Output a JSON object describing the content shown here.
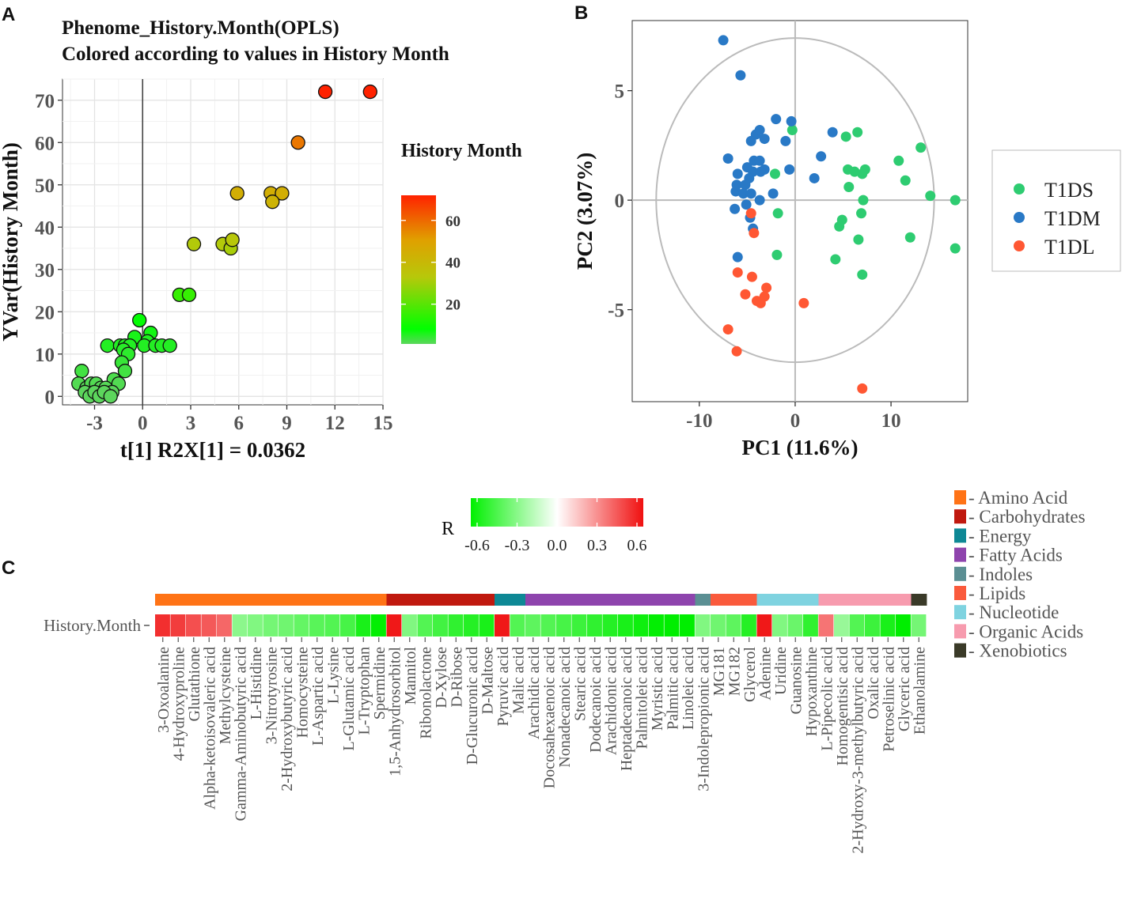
{
  "panels": {
    "a": "A",
    "b": "B",
    "c": "C"
  },
  "colors": {
    "t1ds": "#2ECC71",
    "t1dm": "#2979C6",
    "t1dl": "#FF5733",
    "grid": "#E6E6E6",
    "axis_line": "#444444",
    "circle": "#BBBBBB"
  },
  "chart_data": [
    {
      "id": "opls",
      "type": "scatter",
      "title": [
        "Phenome_History.Month(OPLS)",
        "Colored according to values in History Month"
      ],
      "xlabel": "t[1] R2X[1] = 0.0362",
      "ylabel": "YVar(History Month)",
      "xlim": [
        -5,
        15
      ],
      "ylim": [
        -2,
        75
      ],
      "xticks": [
        -3,
        0,
        3,
        6,
        9,
        12,
        15
      ],
      "yticks": [
        0,
        10,
        20,
        30,
        40,
        50,
        60,
        70
      ],
      "legend": {
        "title": "History Month",
        "ticks": [
          20,
          40,
          60
        ],
        "range": [
          1,
          72
        ],
        "colors": [
          "#5CD65C",
          "#00FF00",
          "#B7C80A",
          "#E0A000",
          "#FF2200"
        ]
      },
      "points": [
        {
          "x": 11.4,
          "y": 72
        },
        {
          "x": 14.2,
          "y": 72
        },
        {
          "x": 9.7,
          "y": 60
        },
        {
          "x": 5.9,
          "y": 48
        },
        {
          "x": 8.0,
          "y": 48
        },
        {
          "x": 8.7,
          "y": 48
        },
        {
          "x": 8.1,
          "y": 46
        },
        {
          "x": 3.2,
          "y": 36
        },
        {
          "x": 5.0,
          "y": 36
        },
        {
          "x": 5.5,
          "y": 35
        },
        {
          "x": 5.6,
          "y": 37
        },
        {
          "x": 2.3,
          "y": 24
        },
        {
          "x": 2.9,
          "y": 24
        },
        {
          "x": -0.2,
          "y": 18
        },
        {
          "x": 0.5,
          "y": 15
        },
        {
          "x": -0.5,
          "y": 14
        },
        {
          "x": 0.3,
          "y": 13
        },
        {
          "x": -2.2,
          "y": 12
        },
        {
          "x": -1.4,
          "y": 12
        },
        {
          "x": -1.1,
          "y": 12
        },
        {
          "x": -0.8,
          "y": 12
        },
        {
          "x": 0.1,
          "y": 12
        },
        {
          "x": 0.8,
          "y": 12
        },
        {
          "x": 1.2,
          "y": 12
        },
        {
          "x": 1.7,
          "y": 12
        },
        {
          "x": -1.2,
          "y": 11
        },
        {
          "x": -0.9,
          "y": 10
        },
        {
          "x": -1.3,
          "y": 8
        },
        {
          "x": -1.1,
          "y": 6
        },
        {
          "x": -1.8,
          "y": 4
        },
        {
          "x": -1.5,
          "y": 3
        },
        {
          "x": -3.8,
          "y": 6
        },
        {
          "x": -4.0,
          "y": 3
        },
        {
          "x": -3.5,
          "y": 2
        },
        {
          "x": -3.2,
          "y": 3
        },
        {
          "x": -2.9,
          "y": 3
        },
        {
          "x": -2.6,
          "y": 2
        },
        {
          "x": -2.3,
          "y": 2
        },
        {
          "x": -1.9,
          "y": 1
        },
        {
          "x": -3.6,
          "y": 1
        },
        {
          "x": -3.3,
          "y": 0
        },
        {
          "x": -3.0,
          "y": 1
        },
        {
          "x": -2.7,
          "y": 0
        },
        {
          "x": -2.4,
          "y": 1
        },
        {
          "x": -2.0,
          "y": 0
        }
      ]
    },
    {
      "id": "pca",
      "type": "scatter",
      "xlabel": "PC1 (11.6%)",
      "ylabel": "PC2 (3.07%)",
      "xlim": [
        -17,
        18
      ],
      "ylim": [
        -9.2,
        8.2
      ],
      "xticks": [
        -10,
        0,
        10
      ],
      "yticks": [
        5,
        0,
        -5
      ],
      "ytick_labels": [
        "5",
        "0",
        "-5"
      ],
      "ellipse": {
        "rx": 14.5,
        "ry": 7.4
      },
      "series": [
        {
          "name": "T1DS",
          "points": [
            [
              -0.3,
              3.2
            ],
            [
              5.3,
              2.9
            ],
            [
              6.5,
              3.1
            ],
            [
              10.8,
              1.8
            ],
            [
              13.1,
              2.4
            ],
            [
              5.5,
              1.4
            ],
            [
              6.2,
              1.3
            ],
            [
              7.0,
              1.2
            ],
            [
              7.3,
              1.4
            ],
            [
              11.5,
              0.9
            ],
            [
              -2.1,
              1.2
            ],
            [
              5.6,
              0.6
            ],
            [
              7.1,
              0.0
            ],
            [
              14.1,
              0.2
            ],
            [
              16.7,
              0.0
            ],
            [
              6.9,
              -0.6
            ],
            [
              4.9,
              -0.9
            ],
            [
              4.6,
              -1.2
            ],
            [
              6.6,
              -1.8
            ],
            [
              12.0,
              -1.7
            ],
            [
              16.7,
              -2.2
            ],
            [
              -1.8,
              -0.6
            ],
            [
              -1.9,
              -2.5
            ],
            [
              4.2,
              -2.7
            ],
            [
              7.0,
              -3.4
            ]
          ]
        },
        {
          "name": "T1DM",
          "points": [
            [
              -7.5,
              7.3
            ],
            [
              -5.7,
              5.7
            ],
            [
              -2.0,
              3.7
            ],
            [
              -0.4,
              3.6
            ],
            [
              3.9,
              3.1
            ],
            [
              -4.1,
              3.0
            ],
            [
              -3.7,
              3.2
            ],
            [
              -4.6,
              2.7
            ],
            [
              -3.2,
              2.8
            ],
            [
              -1.0,
              2.7
            ],
            [
              -7.0,
              1.9
            ],
            [
              -4.3,
              1.8
            ],
            [
              -3.7,
              1.8
            ],
            [
              -5.0,
              1.5
            ],
            [
              -4.4,
              1.3
            ],
            [
              -3.2,
              1.4
            ],
            [
              -3.6,
              1.3
            ],
            [
              -6.0,
              1.2
            ],
            [
              -4.8,
              1.0
            ],
            [
              -5.2,
              0.7
            ],
            [
              -6.2,
              0.4
            ],
            [
              -5.4,
              0.3
            ],
            [
              -4.6,
              0.3
            ],
            [
              -6.1,
              0.7
            ],
            [
              -0.6,
              1.4
            ],
            [
              2.0,
              1.0
            ],
            [
              2.7,
              2.0
            ],
            [
              -2.3,
              0.3
            ],
            [
              -3.7,
              0.0
            ],
            [
              -5.1,
              -0.2
            ],
            [
              -6.3,
              -0.4
            ],
            [
              -4.7,
              -0.8
            ],
            [
              -4.4,
              -1.3
            ],
            [
              -6.0,
              -2.6
            ]
          ]
        },
        {
          "name": "T1DL",
          "points": [
            [
              -4.6,
              -0.6
            ],
            [
              -4.3,
              -1.5
            ],
            [
              -6.0,
              -3.3
            ],
            [
              -4.5,
              -3.5
            ],
            [
              -3.0,
              -4.0
            ],
            [
              -3.2,
              -4.4
            ],
            [
              -5.2,
              -4.3
            ],
            [
              -4.0,
              -4.6
            ],
            [
              -3.6,
              -4.7
            ],
            [
              0.9,
              -4.7
            ],
            [
              -7.0,
              -5.9
            ],
            [
              -6.1,
              -6.9
            ],
            [
              7.0,
              -8.6
            ]
          ]
        }
      ],
      "legend": [
        {
          "label": "T1DS"
        },
        {
          "label": "T1DM"
        },
        {
          "label": "T1DL"
        }
      ]
    },
    {
      "id": "heatmap",
      "type": "heatmap",
      "row_label": "History.Month",
      "colorbar": {
        "title": "R",
        "ticks": [
          "-0.6",
          "-0.3",
          "0.0",
          "0.3",
          "0.6"
        ],
        "range": [
          -0.6,
          0.6
        ]
      },
      "categories": [
        {
          "name": "Amino Acid",
          "color": "#FF7316"
        },
        {
          "name": "Carbohydrates",
          "color": "#C0190F"
        },
        {
          "name": "Energy",
          "color": "#0E8895"
        },
        {
          "name": "Fatty Acids",
          "color": "#8E44AD"
        },
        {
          "name": "Indoles",
          "color": "#5B8F93"
        },
        {
          "name": "Lipids",
          "color": "#FA5A3C"
        },
        {
          "name": "Nucleotide",
          "color": "#7FD3E0"
        },
        {
          "name": "Organic Acids",
          "color": "#F79BAE"
        },
        {
          "name": "Xenobiotics",
          "color": "#3A3A28"
        }
      ],
      "columns": [
        {
          "name": "3-Oxoalanine",
          "group": 0,
          "r": 0.45
        },
        {
          "name": "4-Hydroxyproline",
          "group": 0,
          "r": 0.42
        },
        {
          "name": "Glutathione",
          "group": 0,
          "r": 0.38
        },
        {
          "name": "Alpha-ketoisovaleric acid",
          "group": 0,
          "r": 0.36
        },
        {
          "name": "Methylcysteine",
          "group": 0,
          "r": 0.33
        },
        {
          "name": "Gamma-Aminobutyric acid",
          "group": 0,
          "r": -0.2
        },
        {
          "name": "L-Histidine",
          "group": 0,
          "r": -0.22
        },
        {
          "name": "3-Nitrotyrosine",
          "group": 0,
          "r": -0.24
        },
        {
          "name": "2-Hydroxybutyric acid",
          "group": 0,
          "r": -0.25
        },
        {
          "name": "Homocysteine",
          "group": 0,
          "r": -0.27
        },
        {
          "name": "L-Aspartic acid",
          "group": 0,
          "r": -0.29
        },
        {
          "name": "L-Lysine",
          "group": 0,
          "r": -0.3
        },
        {
          "name": "L-Glutamic acid",
          "group": 0,
          "r": -0.32
        },
        {
          "name": "L-Tryptophan",
          "group": 0,
          "r": -0.4
        },
        {
          "name": "Spermidine",
          "group": 0,
          "r": -0.44
        },
        {
          "name": "1,5-Anhydrosorbitol",
          "group": 1,
          "r": 0.55
        },
        {
          "name": "Mannitol",
          "group": 1,
          "r": -0.22
        },
        {
          "name": "Ribonolactone",
          "group": 1,
          "r": -0.3
        },
        {
          "name": "D-Xylose",
          "group": 1,
          "r": -0.33
        },
        {
          "name": "D-Ribose",
          "group": 1,
          "r": -0.36
        },
        {
          "name": "D-Glucuronic acid",
          "group": 1,
          "r": -0.38
        },
        {
          "name": "D-Maltose",
          "group": 1,
          "r": -0.4
        },
        {
          "name": "Pyruvic acid",
          "group": 2,
          "r": 0.52
        },
        {
          "name": "Malic acid",
          "group": 2,
          "r": -0.3
        },
        {
          "name": "Arachidic acid",
          "group": 3,
          "r": -0.28
        },
        {
          "name": "Docosahexaenoic acid",
          "group": 3,
          "r": -0.3
        },
        {
          "name": "Nonadecanoic acid",
          "group": 3,
          "r": -0.32
        },
        {
          "name": "Stearic acid",
          "group": 3,
          "r": -0.34
        },
        {
          "name": "Dodecanoic acid",
          "group": 3,
          "r": -0.36
        },
        {
          "name": "Arachidonic acid",
          "group": 3,
          "r": -0.38
        },
        {
          "name": "Heptadecanoic acid",
          "group": 3,
          "r": -0.4
        },
        {
          "name": "Palmitoleic acid",
          "group": 3,
          "r": -0.42
        },
        {
          "name": "Myristic acid",
          "group": 3,
          "r": -0.44
        },
        {
          "name": "Palmitic acid",
          "group": 3,
          "r": -0.5
        },
        {
          "name": "Linoleic acid",
          "group": 3,
          "r": -0.56
        },
        {
          "name": "3-Indolepropionic acid",
          "group": 4,
          "r": -0.22
        },
        {
          "name": "MG181",
          "group": 5,
          "r": -0.25
        },
        {
          "name": "MG182",
          "group": 5,
          "r": -0.28
        },
        {
          "name": "Glycerol",
          "group": 5,
          "r": -0.38
        },
        {
          "name": "Adenine",
          "group": 6,
          "r": 0.5
        },
        {
          "name": "Uridine",
          "group": 6,
          "r": -0.22
        },
        {
          "name": "Guanosine",
          "group": 6,
          "r": -0.26
        },
        {
          "name": "Hypoxanthine",
          "group": 6,
          "r": -0.36
        },
        {
          "name": "L-Pipecolic acid",
          "group": 7,
          "r": 0.3
        },
        {
          "name": "Homogentisic acid",
          "group": 7,
          "r": -0.18
        },
        {
          "name": "2-Hydroxy-3-methylbutyric acid",
          "group": 7,
          "r": -0.3
        },
        {
          "name": "Oxalic acid",
          "group": 7,
          "r": -0.34
        },
        {
          "name": "Petroselinic acid",
          "group": 7,
          "r": -0.4
        },
        {
          "name": "Glyceric acid",
          "group": 7,
          "r": -0.46
        },
        {
          "name": "Ethanolamine",
          "group": 8,
          "r": -0.24
        }
      ]
    }
  ]
}
